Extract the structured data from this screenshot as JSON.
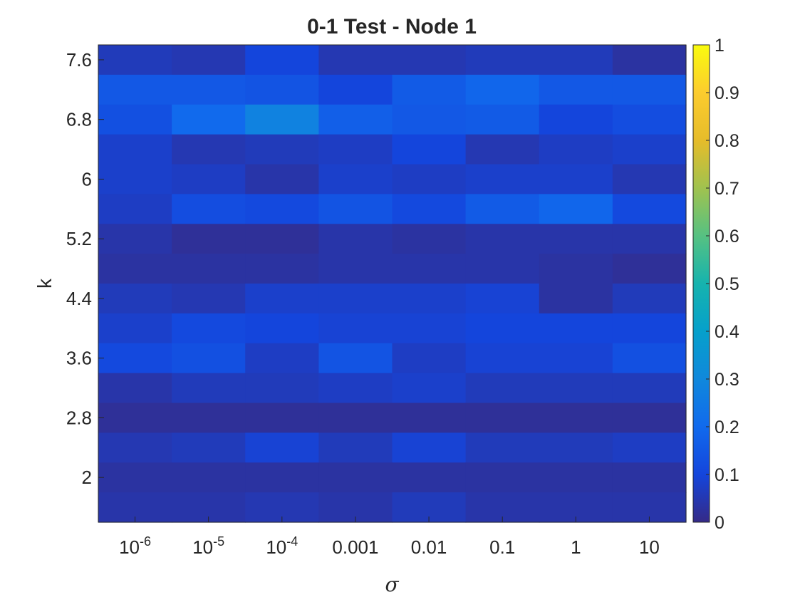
{
  "chart_data": {
    "type": "heatmap",
    "title": "0-1 Test - Node 1",
    "xlabel": "σ",
    "ylabel": "k",
    "x_tick_labels": [
      {
        "base": "10",
        "exp": "-6"
      },
      {
        "base": "10",
        "exp": "-5"
      },
      {
        "base": "10",
        "exp": "-4"
      },
      {
        "base": "0.001",
        "exp": ""
      },
      {
        "base": "0.01",
        "exp": ""
      },
      {
        "base": "0.1",
        "exp": ""
      },
      {
        "base": "1",
        "exp": ""
      },
      {
        "base": "10",
        "exp": ""
      }
    ],
    "y_tick_labels": [
      "7.6",
      "6.8",
      "6",
      "5.2",
      "4.4",
      "3.6",
      "2.8",
      "2"
    ],
    "y_tick_values": [
      7.6,
      6.8,
      6.0,
      5.2,
      4.4,
      3.6,
      2.8,
      2.0
    ],
    "y_rows": [
      7.6,
      7.2,
      6.8,
      6.4,
      6.0,
      5.6,
      5.2,
      4.8,
      4.4,
      4.0,
      3.6,
      3.2,
      2.8,
      2.4,
      2.0,
      1.6
    ],
    "ylim": [
      1.4,
      7.8
    ],
    "colorbar": {
      "limits": [
        0,
        1
      ],
      "tick_labels": [
        "0",
        "0.1",
        "0.2",
        "0.3",
        "0.4",
        "0.5",
        "0.6",
        "0.7",
        "0.8",
        "0.9",
        "1"
      ],
      "tick_values": [
        0,
        0.1,
        0.2,
        0.3,
        0.4,
        0.5,
        0.6,
        0.7,
        0.8,
        0.9,
        1
      ],
      "colormap": "parula"
    },
    "values": [
      [
        0.06,
        0.05,
        0.1,
        0.05,
        0.05,
        0.06,
        0.06,
        0.03
      ],
      [
        0.15,
        0.15,
        0.14,
        0.1,
        0.16,
        0.19,
        0.15,
        0.15
      ],
      [
        0.13,
        0.2,
        0.28,
        0.17,
        0.15,
        0.16,
        0.1,
        0.12
      ],
      [
        0.08,
        0.05,
        0.06,
        0.07,
        0.1,
        0.05,
        0.07,
        0.08
      ],
      [
        0.08,
        0.07,
        0.04,
        0.08,
        0.07,
        0.08,
        0.08,
        0.05
      ],
      [
        0.07,
        0.12,
        0.11,
        0.14,
        0.11,
        0.16,
        0.19,
        0.11
      ],
      [
        0.04,
        0.02,
        0.02,
        0.04,
        0.03,
        0.04,
        0.04,
        0.04
      ],
      [
        0.03,
        0.03,
        0.03,
        0.04,
        0.04,
        0.04,
        0.03,
        0.02
      ],
      [
        0.06,
        0.05,
        0.08,
        0.08,
        0.08,
        0.09,
        0.03,
        0.06
      ],
      [
        0.08,
        0.11,
        0.1,
        0.09,
        0.09,
        0.1,
        0.1,
        0.1
      ],
      [
        0.11,
        0.13,
        0.07,
        0.14,
        0.07,
        0.09,
        0.09,
        0.13
      ],
      [
        0.04,
        0.06,
        0.06,
        0.07,
        0.08,
        0.06,
        0.06,
        0.06
      ],
      [
        0.02,
        0.02,
        0.02,
        0.02,
        0.02,
        0.02,
        0.02,
        0.02
      ],
      [
        0.05,
        0.06,
        0.09,
        0.06,
        0.09,
        0.06,
        0.06,
        0.07
      ],
      [
        0.03,
        0.03,
        0.03,
        0.03,
        0.03,
        0.03,
        0.03,
        0.03
      ],
      [
        0.04,
        0.04,
        0.05,
        0.04,
        0.06,
        0.04,
        0.04,
        0.04
      ]
    ]
  }
}
